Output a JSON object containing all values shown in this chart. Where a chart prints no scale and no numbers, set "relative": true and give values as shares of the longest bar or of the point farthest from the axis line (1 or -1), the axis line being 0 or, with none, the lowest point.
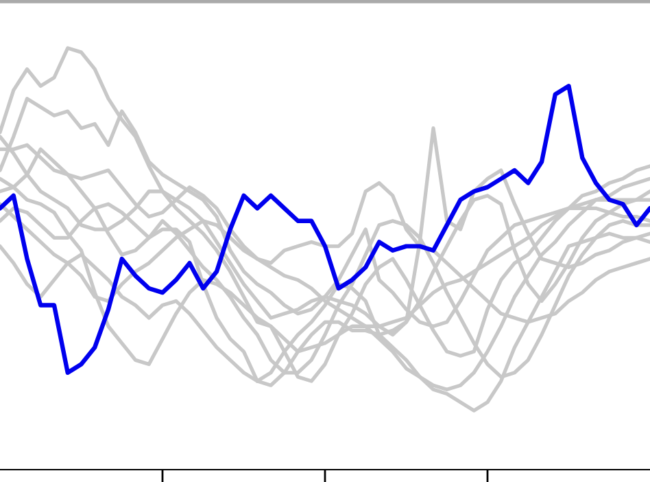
{
  "chart_data": {
    "type": "line",
    "relative": true,
    "line_style": "solid",
    "categories": [
      null,
      null,
      null,
      null,
      null,
      null,
      null,
      null,
      null,
      null,
      null,
      null,
      null,
      null,
      null,
      null,
      null,
      null,
      null,
      null,
      null,
      null,
      null,
      null,
      null,
      null,
      null,
      null,
      null,
      null,
      null,
      null,
      null,
      null,
      null,
      null,
      null,
      null,
      null,
      null,
      null,
      null,
      null,
      null,
      null,
      null,
      null,
      null,
      null
    ],
    "series": [
      {
        "color": "#c8c8c8",
        "values": [
          0.8,
          0.9,
          0.95,
          0.91,
          0.93,
          1.0,
          0.99,
          0.95,
          0.88,
          0.83,
          0.79,
          0.72,
          0.66,
          0.62,
          0.59,
          0.56,
          0.52,
          0.47,
          0.41,
          0.35,
          0.34,
          0.31,
          0.28,
          0.29,
          0.3,
          0.32,
          0.34,
          0.34,
          0.31,
          0.28,
          0.24,
          0.22,
          0.2,
          0.19,
          0.2,
          0.23,
          0.28,
          0.34,
          0.41,
          0.46,
          0.51,
          0.54,
          0.58,
          0.61,
          0.64,
          0.65,
          0.67,
          0.68,
          0.69
        ]
      },
      {
        "color": "#c8c8c8",
        "values": [
          0.71,
          0.79,
          0.88,
          0.86,
          0.84,
          0.85,
          0.81,
          0.82,
          0.77,
          0.85,
          0.8,
          0.73,
          0.7,
          0.68,
          0.66,
          0.64,
          0.6,
          0.52,
          0.47,
          0.44,
          0.42,
          0.39,
          0.37,
          0.38,
          0.41,
          0.45,
          0.51,
          0.57,
          0.45,
          0.42,
          0.38,
          0.35,
          0.34,
          0.35,
          0.4,
          0.46,
          0.52,
          0.55,
          0.58,
          0.59,
          0.6,
          0.61,
          0.62,
          0.63,
          0.64,
          0.64,
          0.64,
          0.64,
          0.64
        ]
      },
      {
        "color": "#c8c8c8",
        "values": [
          0.79,
          0.75,
          0.7,
          0.66,
          0.64,
          0.62,
          0.58,
          0.57,
          0.57,
          0.59,
          0.62,
          0.66,
          0.66,
          0.64,
          0.62,
          0.59,
          0.54,
          0.49,
          0.44,
          0.4,
          0.36,
          0.37,
          0.38,
          0.4,
          0.41,
          0.4,
          0.39,
          0.37,
          0.34,
          0.32,
          0.35,
          0.4,
          0.47,
          0.53,
          0.59,
          0.64,
          0.65,
          0.63,
          0.52,
          0.44,
          0.4,
          0.44,
          0.49,
          0.55,
          0.59,
          0.61,
          0.63,
          0.64,
          0.66
        ]
      },
      {
        "color": "#c8c8c8",
        "values": [
          0.66,
          0.67,
          0.7,
          0.76,
          0.73,
          0.7,
          0.66,
          0.62,
          0.56,
          0.51,
          0.52,
          0.55,
          0.59,
          0.56,
          0.52,
          0.48,
          0.45,
          0.41,
          0.36,
          0.32,
          0.26,
          0.23,
          0.23,
          0.26,
          0.32,
          0.39,
          0.44,
          0.51,
          0.58,
          0.59,
          0.58,
          0.55,
          0.49,
          0.42,
          0.36,
          0.3,
          0.25,
          0.22,
          0.23,
          0.26,
          0.32,
          0.39,
          0.46,
          0.51,
          0.55,
          0.58,
          0.59,
          0.58,
          0.58
        ]
      },
      {
        "color": "#c8c8c8",
        "values": [
          0.59,
          0.62,
          0.61,
          0.58,
          0.55,
          0.55,
          0.59,
          0.62,
          0.63,
          0.61,
          0.58,
          0.55,
          0.57,
          0.57,
          0.54,
          0.44,
          0.36,
          0.31,
          0.28,
          0.21,
          0.23,
          0.28,
          0.32,
          0.35,
          0.39,
          0.44,
          0.43,
          0.4,
          0.32,
          0.29,
          0.26,
          0.22,
          0.19,
          0.18,
          0.16,
          0.14,
          0.16,
          0.21,
          0.29,
          0.35,
          0.41,
          0.47,
          0.53,
          0.54,
          0.55,
          0.56,
          0.55,
          0.55,
          0.54
        ]
      },
      {
        "color": "#c8c8c8",
        "values": [
          0.53,
          0.49,
          0.44,
          0.41,
          0.45,
          0.49,
          0.51,
          0.48,
          0.45,
          0.41,
          0.39,
          0.36,
          0.39,
          0.4,
          0.37,
          0.33,
          0.29,
          0.26,
          0.23,
          0.21,
          0.2,
          0.23,
          0.28,
          0.32,
          0.35,
          0.35,
          0.33,
          0.33,
          0.32,
          0.33,
          0.35,
          0.54,
          0.81,
          0.59,
          0.57,
          0.66,
          0.69,
          0.71,
          0.63,
          0.56,
          0.5,
          0.49,
          0.48,
          0.49,
          0.51,
          0.52,
          0.54,
          0.55,
          0.56
        ]
      },
      {
        "color": "#c8c8c8",
        "values": [
          0.63,
          0.6,
          0.57,
          0.54,
          0.51,
          0.49,
          0.46,
          0.41,
          0.4,
          0.44,
          0.47,
          0.49,
          0.52,
          0.55,
          0.57,
          0.59,
          0.58,
          0.55,
          0.52,
          0.5,
          0.49,
          0.52,
          0.53,
          0.54,
          0.53,
          0.53,
          0.56,
          0.66,
          0.68,
          0.65,
          0.57,
          0.53,
          0.52,
          0.49,
          0.46,
          0.43,
          0.4,
          0.37,
          0.36,
          0.35,
          0.36,
          0.37,
          0.4,
          0.42,
          0.45,
          0.47,
          0.48,
          0.49,
          0.5
        ]
      },
      {
        "color": "#c8c8c8",
        "values": [
          0.69,
          0.67,
          0.64,
          0.63,
          0.61,
          0.56,
          0.52,
          0.42,
          0.34,
          0.3,
          0.26,
          0.25,
          0.31,
          0.37,
          0.42,
          0.45,
          0.44,
          0.42,
          0.39,
          0.36,
          0.34,
          0.28,
          0.22,
          0.21,
          0.25,
          0.32,
          0.37,
          0.44,
          0.48,
          0.5,
          0.45,
          0.39,
          0.33,
          0.28,
          0.27,
          0.28,
          0.38,
          0.45,
          0.49,
          0.51,
          0.55,
          0.59,
          0.62,
          0.65,
          0.66,
          0.68,
          0.69,
          0.71,
          0.72
        ]
      },
      {
        "color": "#c8c8c8",
        "values": [
          0.76,
          0.76,
          0.77,
          0.74,
          0.71,
          0.7,
          0.69,
          0.7,
          0.71,
          0.67,
          0.63,
          0.6,
          0.61,
          0.64,
          0.67,
          0.65,
          0.62,
          0.57,
          0.53,
          0.5,
          0.48,
          0.46,
          0.45,
          0.43,
          0.4,
          0.38,
          0.36,
          0.34,
          0.34,
          0.35,
          0.36,
          0.39,
          0.42,
          0.44,
          0.45,
          0.47,
          0.49,
          0.51,
          0.53,
          0.55,
          0.58,
          0.6,
          0.62,
          0.62,
          0.62,
          0.61,
          0.6,
          0.6,
          0.59
        ]
      },
      {
        "color": "#0000ee",
        "values": [
          0.62,
          0.65,
          0.5,
          0.39,
          0.39,
          0.23,
          0.25,
          0.29,
          0.38,
          0.5,
          0.46,
          0.43,
          0.42,
          0.45,
          0.49,
          0.43,
          0.47,
          0.57,
          0.65,
          0.62,
          0.65,
          0.62,
          0.59,
          0.59,
          0.53,
          0.43,
          0.45,
          0.48,
          0.54,
          0.52,
          0.53,
          0.53,
          0.52,
          0.58,
          0.64,
          0.66,
          0.67,
          0.69,
          0.71,
          0.68,
          0.73,
          0.89,
          0.91,
          0.74,
          0.68,
          0.64,
          0.63,
          0.58,
          0.62
        ]
      }
    ]
  }
}
